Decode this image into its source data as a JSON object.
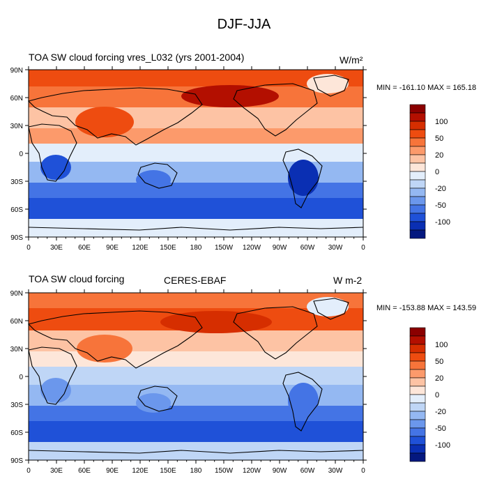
{
  "figure": {
    "title": "DJF-JJA"
  },
  "chart_data": [
    {
      "type": "heatmap",
      "title": "TOA SW cloud forcing vres_L032 (yrs 2001-2004)",
      "subtitle": "",
      "units": "W/m²",
      "minmax": "MIN = -161.10 MAX = 165.18",
      "x_ticks": [
        "0",
        "30E",
        "60E",
        "90E",
        "120E",
        "150E",
        "180",
        "150W",
        "120W",
        "90W",
        "60W",
        "30W",
        "0"
      ],
      "y_ticks": [
        "90N",
        "60N",
        "30N",
        "0",
        "30S",
        "60S",
        "90S"
      ],
      "xlim": [
        0,
        360
      ],
      "ylim": [
        -90,
        90
      ],
      "colorbar": {
        "labels": [
          {
            "index": 2,
            "text": "100"
          },
          {
            "index": 4,
            "text": "50"
          },
          {
            "index": 6,
            "text": "20"
          },
          {
            "index": 8,
            "text": "0"
          },
          {
            "index": 10,
            "text": "-20"
          },
          {
            "index": 12,
            "text": "-50"
          },
          {
            "index": 14,
            "text": "-100"
          }
        ]
      }
    },
    {
      "type": "heatmap",
      "title": "TOA SW cloud forcing",
      "subtitle": "CERES-EBAF",
      "units": "W m-2",
      "minmax": "MIN = -153.88 MAX = 143.59",
      "x_ticks": [
        "0",
        "30E",
        "60E",
        "90E",
        "120E",
        "150E",
        "180",
        "150W",
        "120W",
        "90W",
        "60W",
        "30W",
        "0"
      ],
      "y_ticks": [
        "90N",
        "60N",
        "30N",
        "0",
        "30S",
        "60S",
        "90S"
      ],
      "xlim": [
        0,
        360
      ],
      "ylim": [
        -90,
        90
      ],
      "colorbar": {
        "labels": [
          {
            "index": 2,
            "text": "100"
          },
          {
            "index": 4,
            "text": "50"
          },
          {
            "index": 6,
            "text": "20"
          },
          {
            "index": 8,
            "text": "0"
          },
          {
            "index": 10,
            "text": "-20"
          },
          {
            "index": 12,
            "text": "-50"
          },
          {
            "index": 14,
            "text": "-100"
          }
        ]
      }
    }
  ],
  "palette": [
    "#8b0000",
    "#b30f00",
    "#d62e00",
    "#ee4c10",
    "#f7743a",
    "#fc9a6b",
    "#fdc3a4",
    "#fde6d9",
    "#e3eefb",
    "#bfd6f6",
    "#94b8f2",
    "#6b97ec",
    "#4474e5",
    "#1f51d8",
    "#0a2fb3",
    "#04187f"
  ]
}
